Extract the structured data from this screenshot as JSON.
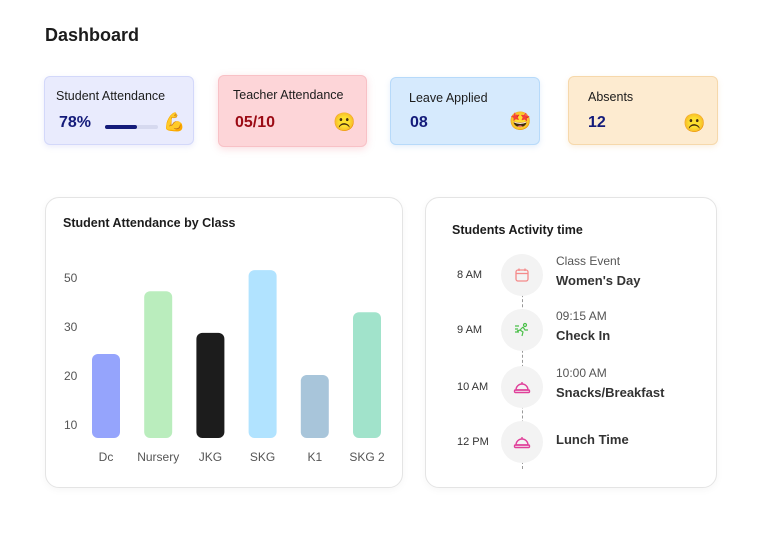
{
  "header": {
    "title": "Dashboard"
  },
  "cards": [
    {
      "label": "Student Attendance",
      "value": "78%",
      "progress": 0.6,
      "icon": "flexed-biceps-emoji",
      "emoji": "💪",
      "value_color": "#141b7a"
    },
    {
      "label": "Teacher Attendance",
      "value": "05/10",
      "icon": "frowning-face-emoji",
      "emoji": "☹️",
      "value_color": "#9b0a14"
    },
    {
      "label": "Leave Applied",
      "value": "08",
      "icon": "star-struck-emoji",
      "emoji": "🤩",
      "value_color": "#141b7a"
    },
    {
      "label": "Absents",
      "value": "12",
      "icon": "frowning-face-emoji",
      "emoji": "☹️",
      "value_color": "#141b7a"
    }
  ],
  "chart_data": {
    "type": "bar",
    "title": "Student Attendance by Class",
    "categories": [
      "Dc",
      "Nursery",
      "JKG",
      "SKG",
      "K1",
      "SKG 2"
    ],
    "values": [
      24.5,
      37.3,
      28.8,
      41.6,
      20.2,
      33
    ],
    "colors": [
      "#95a4fc",
      "#baedbd",
      "#1c1c1c",
      "#b1e3ff",
      "#a8c5da",
      "#a1e3cb"
    ],
    "y_tick_labels": [
      "10",
      "20",
      "30",
      "50"
    ],
    "grid": false
  },
  "activity": {
    "title": "Students Activity time",
    "items": [
      {
        "time": "8 AM",
        "sub": "Class Event",
        "main": "Women's Day",
        "icon": "calendar-icon"
      },
      {
        "time": "9 AM",
        "sub": "09:15 AM",
        "main": "Check In",
        "icon": "running-exit-icon"
      },
      {
        "time": "10 AM",
        "sub": "10:00 AM",
        "main": "Snacks/Breakfast",
        "icon": "food-cloche-icon"
      },
      {
        "time": "12 PM",
        "sub": "",
        "main": "Lunch Time",
        "icon": "food-cloche-icon"
      }
    ]
  }
}
